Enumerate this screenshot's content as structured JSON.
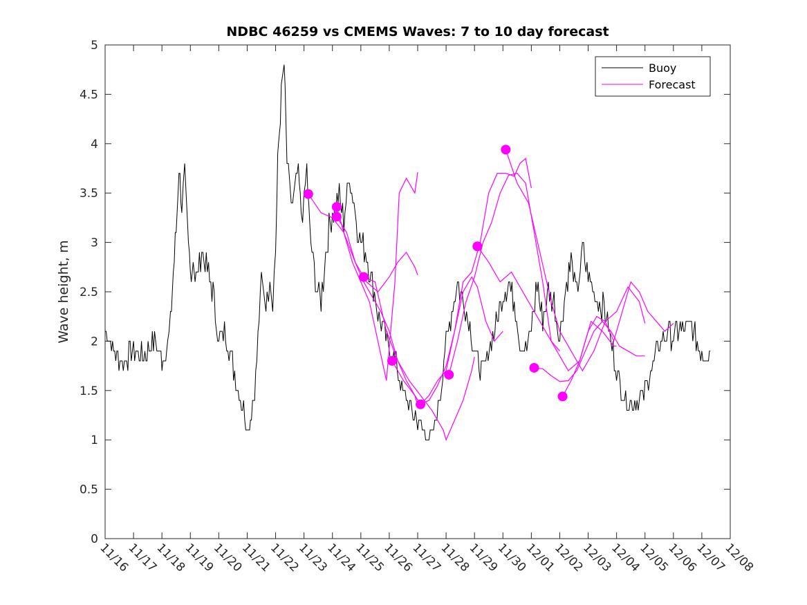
{
  "chart_data": {
    "type": "line",
    "title": "NDBC 46259 vs CMEMS Waves: 7 to 10 day forecast",
    "xlabel": "",
    "ylabel": "Wave height, m",
    "xlim": [
      0,
      22
    ],
    "ylim": [
      0,
      5
    ],
    "x_ticks": [
      0,
      1,
      2,
      3,
      4,
      5,
      6,
      7,
      8,
      9,
      10,
      11,
      12,
      13,
      14,
      15,
      16,
      17,
      18,
      19,
      20,
      21,
      22
    ],
    "x_tick_labels": [
      "11/16",
      "11/17",
      "11/18",
      "11/19",
      "11/20",
      "11/21",
      "11/22",
      "11/23",
      "11/24",
      "11/25",
      "11/26",
      "11/27",
      "11/28",
      "11/29",
      "11/30",
      "12/01",
      "12/02",
      "12/03",
      "12/04",
      "12/05",
      "12/06",
      "12/07",
      "12/08"
    ],
    "y_ticks": [
      0,
      0.5,
      1,
      1.5,
      2,
      2.5,
      3,
      3.5,
      4,
      4.5,
      5
    ],
    "y_tick_labels": [
      "0",
      "0.5",
      "1",
      "1.5",
      "2",
      "2.5",
      "3",
      "3.5",
      "4",
      "4.5",
      "5"
    ],
    "legend": {
      "position": "top-right",
      "entries": [
        {
          "name": "Buoy",
          "color": "#000000"
        },
        {
          "name": "Forecast",
          "color": "#ff00ff"
        }
      ]
    },
    "buoy": {
      "name": "Buoy",
      "color": "#000000",
      "x": [
        0,
        0.3,
        0.6,
        1.0,
        1.4,
        1.7,
        1.9,
        2.0,
        2.1,
        2.2,
        2.3,
        2.4,
        2.5,
        2.6,
        2.7,
        2.8,
        2.9,
        3.0,
        3.1,
        3.2,
        3.4,
        3.6,
        3.8,
        4.0,
        4.2,
        4.4,
        4.6,
        4.8,
        4.95,
        5.05,
        5.15,
        5.3,
        5.5,
        5.7,
        5.8,
        5.9,
        6.0,
        6.05,
        6.1,
        6.2,
        6.3,
        6.4,
        6.5,
        6.6,
        6.8,
        6.9,
        7.0,
        7.1,
        7.2,
        7.4,
        7.6,
        7.8,
        8.0,
        8.2,
        8.4,
        8.6,
        8.8,
        9.0,
        9.2,
        9.4,
        9.6,
        9.8,
        10.0,
        10.2,
        10.4,
        10.6,
        10.8,
        11.0,
        11.2,
        11.4,
        11.6,
        11.8,
        12.0,
        12.2,
        12.4,
        12.6,
        12.8,
        13.0,
        13.2,
        13.4,
        13.6,
        13.8,
        14.0,
        14.2,
        14.4,
        14.6,
        14.8,
        15.0,
        15.2,
        15.4,
        15.6,
        15.8,
        16.0,
        16.2,
        16.4,
        16.6,
        16.8,
        17.0,
        17.2,
        17.4,
        17.6,
        17.8,
        18.0,
        18.2,
        18.4,
        18.6,
        18.8,
        19.0,
        19.2,
        19.4,
        19.6,
        19.8,
        20.0,
        20.2,
        20.4,
        20.6,
        20.8,
        21.0,
        21.2,
        21.3
      ],
      "values": [
        2.1,
        1.9,
        1.8,
        1.9,
        1.85,
        2.0,
        1.9,
        1.8,
        1.85,
        2.0,
        2.2,
        2.7,
        3.1,
        3.8,
        3.4,
        3.7,
        3.1,
        2.7,
        2.8,
        2.6,
        2.9,
        2.7,
        2.5,
        2.0,
        2.1,
        1.9,
        1.6,
        1.4,
        1.2,
        1.1,
        1.3,
        1.6,
        2.6,
        2.4,
        2.7,
        2.4,
        2.9,
        3.5,
        4.0,
        4.5,
        4.8,
        3.8,
        3.5,
        3.4,
        3.7,
        3.3,
        3.4,
        3.8,
        3.1,
        2.6,
        2.4,
        3.0,
        3.3,
        3.5,
        3.2,
        3.7,
        3.3,
        3.0,
        2.9,
        2.6,
        2.3,
        2.1,
        1.9,
        1.8,
        1.6,
        1.4,
        1.3,
        1.2,
        1.1,
        1.0,
        1.1,
        1.5,
        2.0,
        2.3,
        2.6,
        2.4,
        2.2,
        1.9,
        1.7,
        1.8,
        2.0,
        2.2,
        2.5,
        2.6,
        2.4,
        2.0,
        1.9,
        2.1,
        2.6,
        2.2,
        2.5,
        2.4,
        2.0,
        2.5,
        2.8,
        2.5,
        2.9,
        2.7,
        2.5,
        2.4,
        2.3,
        2.0,
        1.7,
        1.5,
        1.4,
        1.35,
        1.4,
        1.5,
        1.7,
        1.9,
        2.0,
        2.1,
        2.0,
        2.15,
        2.1,
        2.2,
        2.0,
        1.9,
        1.85,
        1.9
      ],
      "noise_amplitude": 0.13
    },
    "forecasts": [
      {
        "start": 7.15,
        "start_value": 3.49,
        "x": [
          7.15,
          7.6,
          8.0,
          8.4,
          8.8,
          9.2,
          9.6,
          10.0,
          10.3,
          10.6,
          10.9,
          11.0
        ],
        "values": [
          3.49,
          3.3,
          3.25,
          3.1,
          2.8,
          2.6,
          2.5,
          2.65,
          2.8,
          2.9,
          2.75,
          2.67
        ]
      },
      {
        "start": 8.15,
        "start_value": 3.36,
        "x": [
          8.15,
          8.4,
          8.7,
          9.0,
          9.3,
          9.6,
          9.9,
          10.2,
          10.35,
          10.6,
          10.9,
          11.0
        ],
        "values": [
          3.36,
          3.1,
          2.8,
          2.6,
          2.4,
          2.0,
          1.6,
          2.6,
          3.5,
          3.65,
          3.5,
          3.71
        ]
      },
      {
        "start": 8.15,
        "start_value": 3.26,
        "x": [
          8.15,
          8.5,
          8.8,
          9.1,
          9.4,
          9.7,
          10.0,
          10.3,
          10.6,
          10.9,
          11.0
        ],
        "values": [
          3.26,
          3.1,
          2.8,
          2.6,
          2.45,
          2.3,
          2.1,
          1.8,
          1.6,
          1.45,
          1.35
        ]
      },
      {
        "start": 9.1,
        "start_value": 2.65,
        "x": [
          9.1,
          9.5,
          9.9,
          10.3,
          10.7,
          11.1,
          11.5,
          11.9,
          12.0,
          12.3,
          12.6,
          12.9,
          13.0
        ],
        "values": [
          2.65,
          2.6,
          2.1,
          1.8,
          1.6,
          1.45,
          1.3,
          1.1,
          1.0,
          1.2,
          1.4,
          1.7,
          1.84
        ]
      },
      {
        "start": 10.1,
        "start_value": 1.8,
        "x": [
          10.1,
          10.5,
          10.9,
          11.1,
          11.4,
          11.7,
          12.0,
          12.3,
          12.6,
          12.9,
          13.1,
          13.4,
          13.7,
          14.0
        ],
        "values": [
          1.8,
          1.6,
          1.45,
          1.36,
          1.4,
          1.55,
          1.75,
          2.1,
          2.5,
          2.65,
          2.55,
          2.2,
          2.0,
          2.1
        ]
      },
      {
        "start": 11.1,
        "start_value": 1.36,
        "x": [
          11.1,
          11.4,
          11.7,
          12.0,
          12.3,
          12.6,
          12.9,
          13.2,
          13.5,
          13.8,
          14.1,
          14.4,
          14.6,
          14.8,
          15.0
        ],
        "values": [
          1.36,
          1.45,
          1.6,
          1.7,
          2.1,
          2.6,
          2.7,
          3.0,
          3.5,
          3.7,
          3.7,
          3.67,
          3.8,
          3.85,
          3.55
        ]
      },
      {
        "start": 12.1,
        "start_value": 1.66,
        "x": [
          12.1,
          12.4,
          12.7,
          13.0,
          13.3,
          13.6,
          13.9,
          14.2,
          14.5,
          14.8,
          15.1,
          15.4,
          15.7,
          16.0
        ],
        "values": [
          1.66,
          2.0,
          2.4,
          2.65,
          3.0,
          3.2,
          3.5,
          3.68,
          3.7,
          3.6,
          3.1,
          2.6,
          2.0,
          1.9
        ]
      },
      {
        "start": 13.1,
        "start_value": 2.96,
        "x": [
          13.1,
          13.5,
          13.9,
          14.3,
          14.7,
          15.1,
          15.5,
          15.9,
          16.3,
          16.7,
          17.1,
          17.5,
          17.9,
          18.0
        ],
        "values": [
          2.96,
          2.8,
          2.6,
          2.7,
          2.5,
          2.3,
          2.1,
          1.9,
          1.7,
          1.8,
          2.2,
          2.1,
          1.95,
          1.95
        ]
      },
      {
        "start": 14.1,
        "start_value": 3.94,
        "x": [
          14.1,
          14.5,
          14.9,
          15.3,
          15.7,
          16.0,
          16.4,
          16.8,
          17.2,
          17.6,
          18.0,
          18.4,
          18.8,
          19.0
        ],
        "values": [
          3.94,
          3.6,
          3.4,
          2.9,
          2.4,
          2.1,
          1.9,
          1.7,
          1.9,
          2.2,
          2.3,
          2.55,
          2.4,
          2.18
        ]
      },
      {
        "start": 15.1,
        "start_value": 1.73,
        "x": [
          15.1,
          15.4,
          15.7,
          16.0,
          16.3,
          16.6,
          16.9,
          17.2,
          17.5,
          17.8,
          18.1,
          18.4,
          18.7,
          19.0
        ],
        "values": [
          1.73,
          1.72,
          1.65,
          1.59,
          1.6,
          1.7,
          1.9,
          2.1,
          2.2,
          2.1,
          1.95,
          1.9,
          1.85,
          1.85
        ]
      },
      {
        "start": 16.1,
        "start_value": 1.44,
        "x": [
          16.1,
          16.4,
          16.7,
          17.0,
          17.3,
          17.6,
          17.9,
          18.2,
          18.5,
          18.8,
          19.1,
          19.4,
          19.7,
          20.0
        ],
        "values": [
          1.44,
          1.6,
          1.8,
          2.1,
          2.25,
          2.2,
          2.0,
          2.3,
          2.6,
          2.5,
          2.3,
          2.2,
          2.1,
          2.18
        ]
      }
    ]
  }
}
